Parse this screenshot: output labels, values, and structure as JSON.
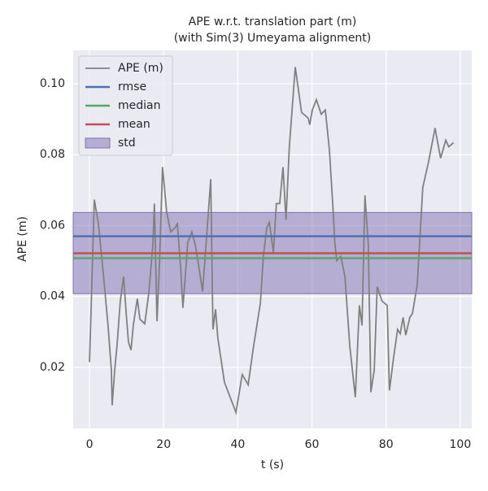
{
  "chart_data": {
    "type": "line",
    "title": [
      "APE w.r.t. translation part (m)",
      "(with Sim(3) Umeyama alignment)"
    ],
    "xlabel": "t (s)",
    "ylabel": "APE (m)",
    "x": [
      0,
      1.3,
      2.4,
      3.7,
      5,
      5.9,
      6.1,
      6.8,
      7.5,
      8.3,
      9.2,
      9.9,
      10.5,
      11.2,
      11.8,
      12.9,
      13.6,
      14.9,
      16,
      17.1,
      17.5,
      18.2,
      18.9,
      19.7,
      20.8,
      21.9,
      23,
      23.7,
      24.6,
      25.2,
      26.5,
      27.6,
      28.5,
      29.4,
      30.5,
      31.6,
      32.7,
      33.3,
      34,
      34.6,
      36.4,
      39.5,
      41.2,
      42.8,
      44.1,
      46.1,
      46.9,
      47.8,
      48.5,
      49.6,
      50.4,
      51.3,
      52.2,
      53,
      53.9,
      55.5,
      57.2,
      59,
      59.4,
      60.1,
      61.2,
      62.5,
      63.6,
      64.7,
      65.6,
      66.2,
      66.7,
      67.8,
      68.9,
      70.2,
      71.7,
      72.8,
      73.5,
      74.3,
      75.2,
      75.9,
      76.8,
      77.6,
      78.9,
      80.3,
      80.9,
      82,
      83.1,
      83.8,
      84.6,
      85.3,
      86.4,
      87.1,
      88.4,
      89.9,
      91.4,
      93.2,
      94.7,
      96.1,
      96.9,
      98.2
    ],
    "series": [
      {
        "name": "APE (m)",
        "color": "#808080",
        "values": [
          0.0215,
          0.0673,
          0.0605,
          0.0467,
          0.0318,
          0.0192,
          0.0093,
          0.0192,
          0.0272,
          0.0387,
          0.0456,
          0.0352,
          0.0272,
          0.0249,
          0.0318,
          0.0394,
          0.0336,
          0.0323,
          0.041,
          0.0547,
          0.0662,
          0.033,
          0.0501,
          0.0765,
          0.0639,
          0.0582,
          0.0593,
          0.0605,
          0.0478,
          0.0368,
          0.0552,
          0.0582,
          0.0547,
          0.049,
          0.0414,
          0.057,
          0.0731,
          0.0307,
          0.0364,
          0.0284,
          0.0158,
          0.0073,
          0.018,
          0.0151,
          0.0249,
          0.0382,
          0.0513,
          0.0593,
          0.0609,
          0.0524,
          0.0662,
          0.0662,
          0.0765,
          0.0616,
          0.0822,
          0.1047,
          0.0919,
          0.0903,
          0.0884,
          0.0926,
          0.0955,
          0.0914,
          0.0926,
          0.0815,
          0.0662,
          0.0547,
          0.0501,
          0.0513,
          0.0456,
          0.0261,
          0.0116,
          0.0375,
          0.0318,
          0.0685,
          0.0547,
          0.013,
          0.0192,
          0.0428,
          0.0387,
          0.0375,
          0.0135,
          0.0226,
          0.0307,
          0.0295,
          0.0341,
          0.0291,
          0.0341,
          0.0352,
          0.0433,
          0.0708,
          0.0777,
          0.0875,
          0.079,
          0.0841,
          0.0822,
          0.0834
        ]
      }
    ],
    "hlines": [
      {
        "name": "rmse",
        "color": "#4c72b0",
        "value": 0.057
      },
      {
        "name": "median",
        "color": "#55a868",
        "value": 0.0508
      },
      {
        "name": "mean",
        "color": "#c44e52",
        "value": 0.0522
      }
    ],
    "band": {
      "name": "std",
      "color": "#8172b2",
      "range": [
        0.0408,
        0.0637
      ]
    },
    "xlim": [
      -4.4,
      103.1
    ],
    "ylim": [
      0.0028,
      0.1094
    ],
    "xticks": [
      0,
      20,
      40,
      60,
      80,
      100
    ],
    "yticks": [
      0.02,
      0.04,
      0.06,
      0.08,
      {
        "value": 0.1,
        "label": "0.10"
      }
    ],
    "grid": true,
    "legend": "upper left"
  }
}
